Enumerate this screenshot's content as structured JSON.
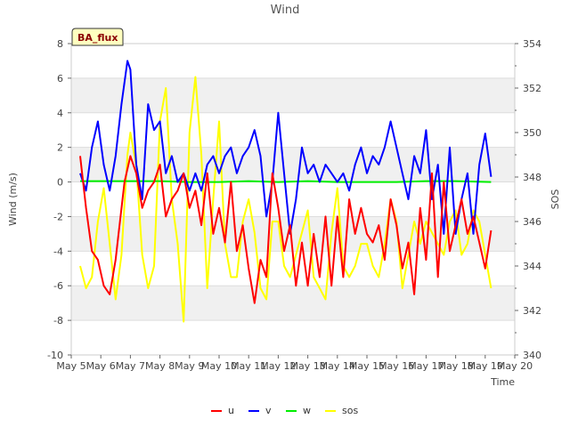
{
  "chart_data": {
    "type": "line",
    "title": "Wind",
    "xlabel": "Time",
    "ylabel": "Wind (m/s)",
    "ylabel_right": "SOS",
    "badge": "BA_flux",
    "x_ticks": [
      "May 5",
      "May 6",
      "May 7",
      "May 8",
      "May 9",
      "May 10",
      "May 11",
      "May 12",
      "May 13",
      "May 14",
      "May 15",
      "May 16",
      "May 17",
      "May 18",
      "May 19",
      "May 20"
    ],
    "xlim": [
      5,
      20
    ],
    "ylim": [
      -10,
      8
    ],
    "y_ticks": [
      "-10",
      "-8",
      "-6",
      "-4",
      "-2",
      "0",
      "2",
      "4",
      "6",
      "8"
    ],
    "y2lim": [
      340,
      354
    ],
    "y2_ticks": [
      "340",
      "342",
      "344",
      "346",
      "348",
      "350",
      "352",
      "354"
    ],
    "colors": {
      "u": "#ff0000",
      "v": "#0000ff",
      "w": "#00ee00",
      "sos": "#ffff00"
    },
    "series": [
      {
        "name": "u",
        "axis": "left",
        "color": "#ff0000",
        "x": [
          5.3,
          5.5,
          5.7,
          5.9,
          6.1,
          6.3,
          6.5,
          6.6,
          6.8,
          7.0,
          7.2,
          7.4,
          7.6,
          7.8,
          8.0,
          8.2,
          8.4,
          8.6,
          8.8,
          9.0,
          9.2,
          9.4,
          9.6,
          9.8,
          10.0,
          10.2,
          10.4,
          10.6,
          10.8,
          11.0,
          11.2,
          11.4,
          11.6,
          11.8,
          12.0,
          12.2,
          12.4,
          12.6,
          12.8,
          13.0,
          13.2,
          13.4,
          13.6,
          13.8,
          14.0,
          14.2,
          14.4,
          14.6,
          14.8,
          15.0,
          15.2,
          15.4,
          15.6,
          15.8,
          16.0,
          16.2,
          16.4,
          16.6,
          16.8,
          17.0,
          17.2,
          17.4,
          17.6,
          17.8,
          18.0,
          18.2,
          18.4,
          18.6,
          18.8,
          19.0,
          19.2
        ],
        "values": [
          1.5,
          -1.5,
          -4,
          -4.5,
          -6,
          -6.5,
          -4.5,
          -3,
          0,
          1.5,
          0.5,
          -1.5,
          -0.5,
          0,
          1,
          -2,
          -1,
          -0.5,
          0.5,
          -1.5,
          -0.5,
          -2.5,
          0.5,
          -3,
          -1.5,
          -3.5,
          0,
          -4,
          -2.5,
          -5,
          -7,
          -4.5,
          -5.5,
          0.5,
          -1.5,
          -4,
          -2.5,
          -6,
          -3.5,
          -6,
          -3,
          -5.5,
          -2,
          -6,
          -2,
          -5.5,
          -1,
          -3,
          -1.5,
          -3,
          -3.5,
          -2.5,
          -4.5,
          -1,
          -2.5,
          -5,
          -3.5,
          -6.5,
          -1.5,
          -4.5,
          0.5,
          -5.5,
          0,
          -4,
          -2.5,
          -1,
          -3,
          -2,
          -3.5,
          -5,
          -2.8
        ]
      },
      {
        "name": "v",
        "axis": "left",
        "color": "#0000ff",
        "x": [
          5.3,
          5.5,
          5.7,
          5.9,
          6.1,
          6.3,
          6.5,
          6.7,
          6.9,
          7.0,
          7.2,
          7.4,
          7.6,
          7.8,
          8.0,
          8.2,
          8.4,
          8.6,
          8.8,
          9.0,
          9.2,
          9.4,
          9.6,
          9.8,
          10.0,
          10.2,
          10.4,
          10.6,
          10.8,
          11.0,
          11.2,
          11.4,
          11.6,
          11.8,
          12.0,
          12.2,
          12.4,
          12.6,
          12.8,
          13.0,
          13.2,
          13.4,
          13.6,
          13.8,
          14.0,
          14.2,
          14.4,
          14.6,
          14.8,
          15.0,
          15.2,
          15.4,
          15.6,
          15.8,
          16.0,
          16.2,
          16.4,
          16.6,
          16.8,
          17.0,
          17.2,
          17.4,
          17.6,
          17.8,
          18.0,
          18.2,
          18.4,
          18.6,
          18.8,
          19.0,
          19.2
        ],
        "values": [
          0.5,
          -0.5,
          2,
          3.5,
          1,
          -0.5,
          1.5,
          4.5,
          7,
          6.5,
          1,
          -1,
          4.5,
          3,
          3.5,
          0.5,
          1.5,
          0,
          0.5,
          -0.5,
          0.5,
          -0.5,
          1,
          1.5,
          0.5,
          1.5,
          2,
          0.5,
          1.5,
          2,
          3,
          1.5,
          -2,
          0,
          4,
          0.5,
          -3,
          -1,
          2,
          0.5,
          1,
          0,
          1,
          0.5,
          0,
          0.5,
          -0.5,
          1,
          2,
          0.5,
          1.5,
          1,
          2,
          3.5,
          2,
          0.5,
          -1,
          1.5,
          0.5,
          3,
          -1,
          1,
          -3,
          2,
          -3,
          -1,
          0.5,
          -3,
          1,
          2.8,
          0.3
        ]
      },
      {
        "name": "w",
        "axis": "left",
        "color": "#00ee00",
        "x": [
          5.3,
          6.0,
          7.0,
          8.0,
          9.0,
          10.0,
          11.0,
          12.0,
          13.0,
          14.0,
          15.0,
          16.0,
          17.0,
          18.0,
          19.2
        ],
        "values": [
          0.05,
          0.05,
          0.05,
          0.05,
          0.0,
          0.0,
          0.05,
          0.0,
          0.05,
          0.0,
          0.0,
          0.0,
          0.05,
          0.05,
          0.0
        ]
      },
      {
        "name": "sos",
        "axis": "right",
        "color": "#ffff00",
        "x": [
          5.3,
          5.5,
          5.7,
          5.9,
          6.1,
          6.3,
          6.5,
          6.7,
          6.9,
          7.0,
          7.2,
          7.4,
          7.6,
          7.8,
          8.0,
          8.2,
          8.4,
          8.6,
          8.8,
          9.0,
          9.2,
          9.4,
          9.6,
          9.8,
          10.0,
          10.2,
          10.4,
          10.6,
          10.8,
          11.0,
          11.2,
          11.4,
          11.6,
          11.8,
          12.0,
          12.2,
          12.4,
          12.6,
          12.8,
          13.0,
          13.2,
          13.4,
          13.6,
          13.8,
          14.0,
          14.2,
          14.4,
          14.6,
          14.8,
          15.0,
          15.2,
          15.4,
          15.6,
          15.8,
          16.0,
          16.2,
          16.4,
          16.6,
          16.8,
          17.0,
          17.2,
          17.4,
          17.6,
          17.8,
          18.0,
          18.2,
          18.4,
          18.6,
          18.8,
          19.0,
          19.2
        ],
        "values": [
          344,
          343,
          343.5,
          346,
          347.5,
          345,
          342.5,
          344.5,
          349,
          350,
          348.5,
          344.5,
          343,
          344,
          350.5,
          352,
          347,
          345,
          341.5,
          350,
          352.5,
          349,
          343,
          347,
          350.5,
          345,
          343.5,
          343.5,
          346,
          347,
          345.5,
          343,
          342.5,
          346,
          346,
          344,
          343.5,
          344.5,
          345.5,
          346.5,
          343.5,
          343,
          342.5,
          345.5,
          347.5,
          344,
          343.5,
          344,
          345,
          345,
          344,
          343.5,
          345,
          347,
          346,
          343,
          344.5,
          346,
          345,
          346,
          345.5,
          345,
          344.5,
          346,
          346.5,
          344.5,
          345,
          346.5,
          346,
          344.5,
          343
        ]
      }
    ],
    "legend": [
      "u",
      "v",
      "w",
      "sos"
    ],
    "legend_position": "bottom-center",
    "grid": true
  }
}
